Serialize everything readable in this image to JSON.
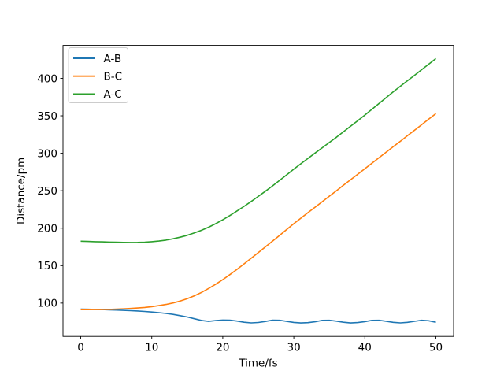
{
  "figure": {
    "background": "#ffffff",
    "border_color": "#000000"
  },
  "chart_data": {
    "type": "line",
    "title": "",
    "xlabel": "Time/fs",
    "ylabel": "Distance/pm",
    "xlim": [
      -2.5,
      52.5
    ],
    "ylim": [
      55.5,
      444
    ],
    "xticks": [
      0,
      10,
      20,
      30,
      40,
      50
    ],
    "yticks": [
      100,
      150,
      200,
      250,
      300,
      350,
      400
    ],
    "grid": false,
    "legend_position": "upper-left",
    "legend_border_color": "#cccccc",
    "x": [
      0,
      1,
      2,
      3,
      4,
      5,
      6,
      7,
      8,
      9,
      10,
      11,
      12,
      13,
      14,
      15,
      16,
      17,
      18,
      19,
      20,
      21,
      22,
      23,
      24,
      25,
      26,
      27,
      28,
      29,
      30,
      31,
      32,
      33,
      34,
      35,
      36,
      37,
      38,
      39,
      40,
      41,
      42,
      43,
      44,
      45,
      46,
      47,
      48,
      49,
      50
    ],
    "series": [
      {
        "name": "A-B",
        "color": "#1f77b4",
        "values": [
          92.0,
          91.8,
          91.6,
          91.3,
          91.0,
          90.7,
          90.3,
          89.9,
          89.4,
          88.8,
          88.1,
          87.2,
          86.2,
          84.9,
          83.3,
          81.5,
          79.2,
          76.8,
          75.6,
          76.6,
          77.4,
          77.2,
          76.0,
          74.4,
          73.6,
          74.1,
          75.5,
          77.2,
          77.1,
          75.6,
          74.2,
          73.5,
          73.9,
          75.1,
          76.9,
          77.1,
          75.9,
          74.4,
          73.5,
          74.0,
          75.3,
          76.9,
          77.0,
          75.8,
          74.3,
          73.6,
          74.3,
          75.7,
          77.0,
          76.4,
          74.4
        ]
      },
      {
        "name": "B-C",
        "color": "#ff7f0e",
        "values": [
          91.2,
          91.2,
          91.3,
          91.4,
          91.6,
          91.9,
          92.3,
          92.8,
          93.4,
          94.2,
          95.2,
          96.6,
          98.2,
          100.2,
          102.7,
          105.8,
          109.7,
          114.3,
          119.5,
          125.2,
          131.3,
          138.0,
          145.0,
          152.4,
          159.9,
          167.4,
          175.0,
          182.7,
          190.4,
          198.2,
          206.0,
          213.4,
          220.7,
          228.0,
          235.3,
          242.7,
          250.0,
          257.4,
          264.7,
          272.0,
          279.4,
          286.7,
          294.0,
          301.4,
          308.7,
          316.0,
          323.4,
          330.7,
          338.0,
          345.5,
          353.0
        ]
      },
      {
        "name": "A-C",
        "color": "#2ca02c",
        "values": [
          182.6,
          182.3,
          182.0,
          181.7,
          181.4,
          181.2,
          181.0,
          180.9,
          181.0,
          181.3,
          181.9,
          182.8,
          184.1,
          185.8,
          187.9,
          190.5,
          193.6,
          197.2,
          201.3,
          206.0,
          211.2,
          216.9,
          222.9,
          229.2,
          235.7,
          242.4,
          249.3,
          256.4,
          263.8,
          271.2,
          278.8,
          286.0,
          293.2,
          300.3,
          307.4,
          314.4,
          321.3,
          328.7,
          336.1,
          343.5,
          351.0,
          358.7,
          366.4,
          374.2,
          382.0,
          389.4,
          396.8,
          404.1,
          411.5,
          418.9,
          426.3
        ]
      }
    ]
  }
}
